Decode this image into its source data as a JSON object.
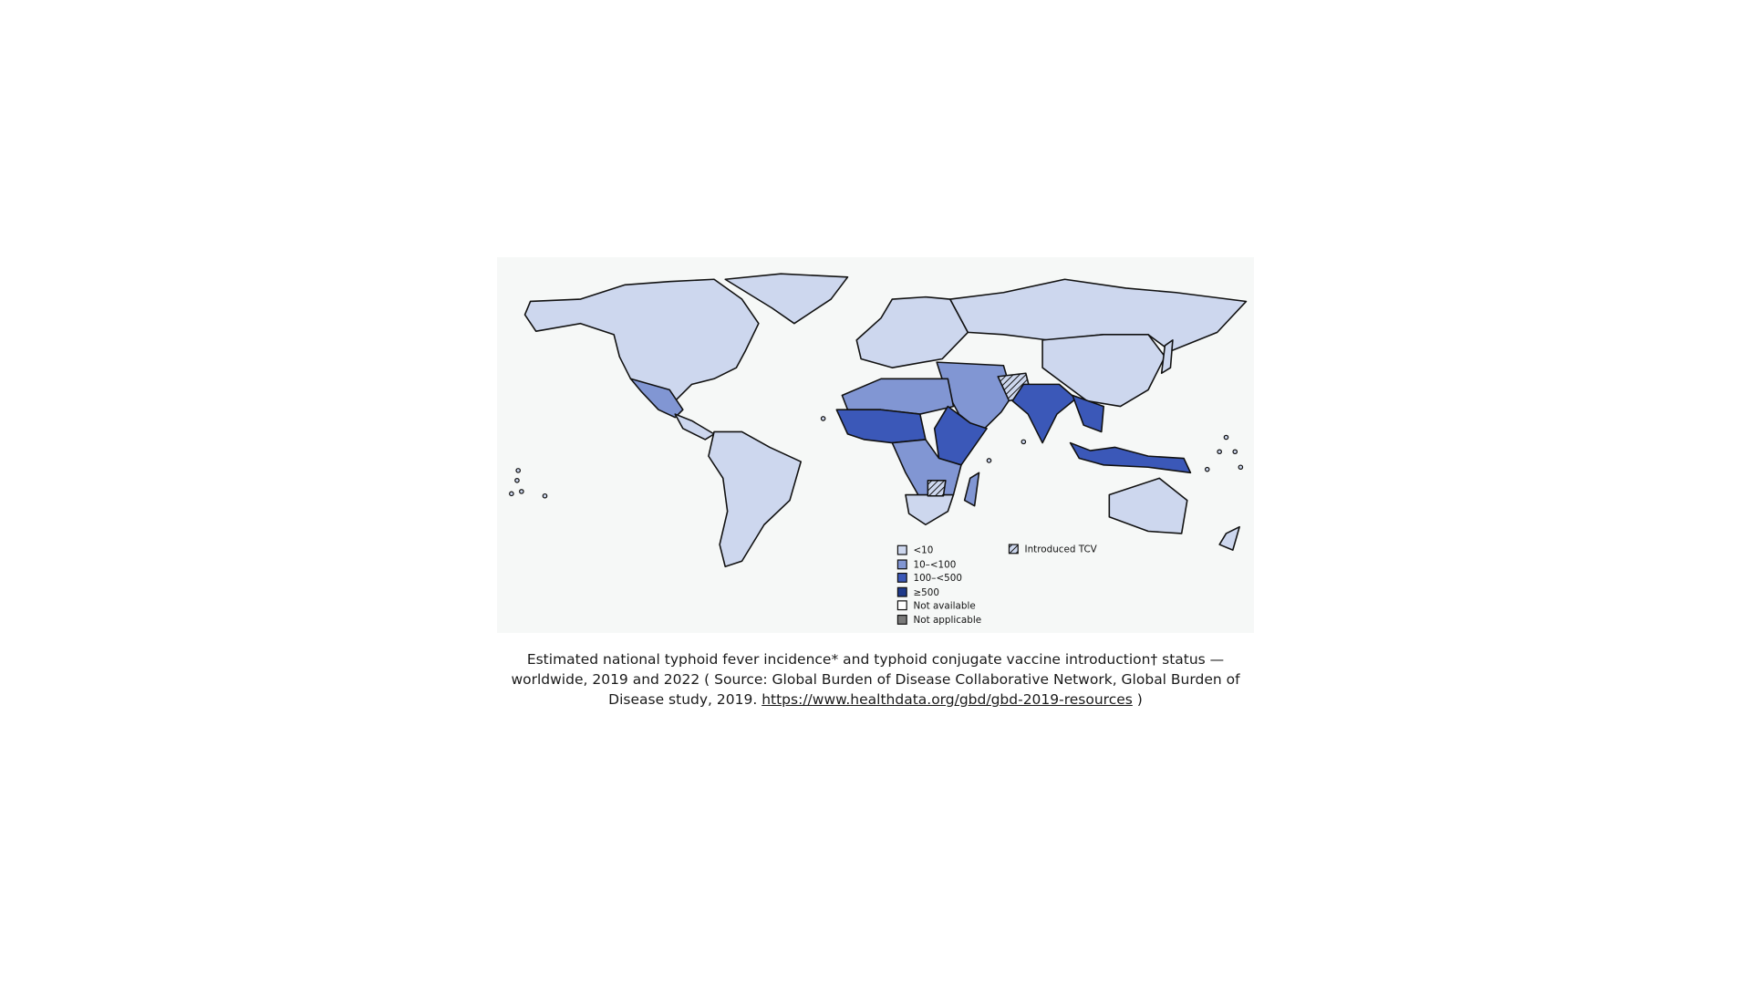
{
  "map": {
    "colors": {
      "lt10": "#cdd7ee",
      "10_100": "#8196d3",
      "100_500": "#3b58b8",
      "ge500": "#1f3a8a",
      "not_available": "#ffffff",
      "not_applicable": "#7a7a7a",
      "background": "#f6f8f7"
    },
    "legend": [
      {
        "label": "<10",
        "color": "#cdd7ee"
      },
      {
        "label": "10–<100",
        "color": "#8196d3"
      },
      {
        "label": "100–<500",
        "color": "#3b58b8"
      },
      {
        "label": "≥500",
        "color": "#1f3a8a"
      },
      {
        "label": "Not available",
        "color": "#ffffff"
      },
      {
        "label": "Not applicable",
        "color": "#7a7a7a"
      }
    ],
    "tcv_legend": {
      "label": "Introduced TCV",
      "pattern": "hatched"
    }
  },
  "caption": {
    "text": "Estimated national typhoid fever incidence* and typhoid conjugate vaccine introduction† status — worldwide, 2019 and 2022 ( Source: Global Burden of Disease Collaborative Network, Global Burden of Disease study, 2019. ",
    "link": "https://www.healthdata.org/gbd/gbd-2019-resources",
    "end": " )"
  }
}
